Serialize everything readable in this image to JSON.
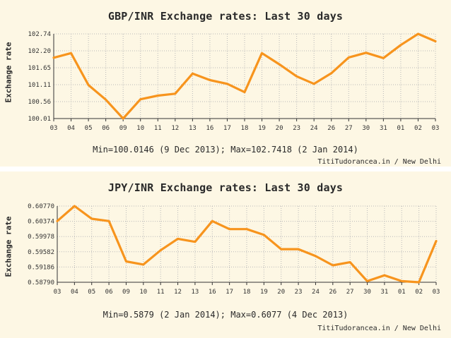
{
  "chart_data": [
    {
      "type": "line",
      "title": "GBP/INR Exchange rates: Last 30 days",
      "ylabel": "Exchange rate",
      "xlabel": "",
      "categories": [
        "03",
        "04",
        "05",
        "06",
        "09",
        "10",
        "11",
        "12",
        "13",
        "16",
        "17",
        "18",
        "19",
        "20",
        "23",
        "24",
        "26",
        "27",
        "30",
        "31",
        "01",
        "02",
        "03"
      ],
      "yticks": [
        "102.74",
        "102.20",
        "101.65",
        "101.11",
        "100.56",
        "100.01"
      ],
      "ylim": [
        100.01,
        102.74
      ],
      "series": [
        {
          "name": "GBP/INR",
          "color": "#f7941d",
          "values": [
            101.97,
            102.12,
            101.09,
            100.62,
            100.01,
            100.63,
            100.75,
            100.81,
            101.46,
            101.25,
            101.13,
            100.86,
            102.12,
            101.76,
            101.37,
            101.13,
            101.47,
            101.98,
            102.13,
            101.96,
            102.38,
            102.74,
            102.5
          ]
        }
      ],
      "summary": "Min=100.0146 (9 Dec 2013); Max=102.7418 (2 Jan 2014)",
      "credit": "TitiTudorancea.in / New Delhi"
    },
    {
      "type": "line",
      "title": "JPY/INR Exchange rates: Last 30 days",
      "ylabel": "Exchange rate",
      "xlabel": "",
      "categories": [
        "03",
        "04",
        "05",
        "06",
        "09",
        "10",
        "11",
        "12",
        "13",
        "16",
        "17",
        "18",
        "19",
        "20",
        "23",
        "24",
        "26",
        "27",
        "30",
        "31",
        "01",
        "02",
        "03"
      ],
      "yticks": [
        "0.60770",
        "0.60374",
        "0.59978",
        "0.59582",
        "0.59186",
        "0.58790"
      ],
      "ylim": [
        0.5879,
        0.6077
      ],
      "series": [
        {
          "name": "JPY/INR",
          "color": "#f7941d",
          "values": [
            0.6038,
            0.6077,
            0.6044,
            0.6038,
            0.5933,
            0.5925,
            0.5962,
            0.5992,
            0.5984,
            0.6038,
            0.6017,
            0.6017,
            0.6002,
            0.5965,
            0.5965,
            0.5947,
            0.5923,
            0.5931,
            0.5882,
            0.5897,
            0.5882,
            0.5879,
            0.5986
          ]
        }
      ],
      "summary": "Min=0.5879 (2 Jan 2014); Max=0.6077 (4 Dec 2013)",
      "credit": "TitiTudorancea.in / New Delhi"
    }
  ]
}
